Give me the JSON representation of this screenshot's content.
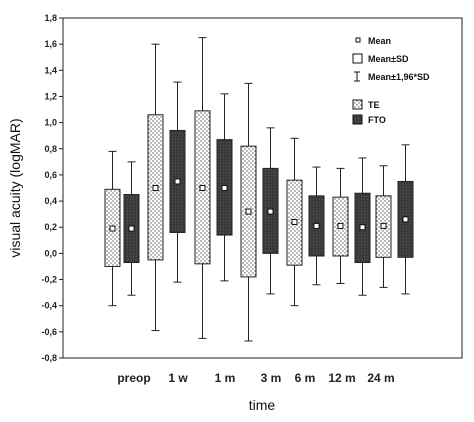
{
  "chart_data": {
    "type": "box",
    "title": "",
    "xlabel": "time",
    "ylabel": "visual acuity (logMAR)",
    "ylim": [
      -0.8,
      1.8
    ],
    "yticks": [
      "-0,8",
      "-0,6",
      "-0,4",
      "-0,2",
      "0,0",
      "0,2",
      "0,4",
      "0,6",
      "0,8",
      "1,0",
      "1,2",
      "1,4",
      "1,6",
      "1,8"
    ],
    "grid": false,
    "legend_position": "top-right",
    "legend": {
      "stats": [
        "Mean",
        "Mean±SD",
        "Mean±1,96*SD"
      ],
      "series": [
        "TE",
        "FTO"
      ]
    },
    "categories": [
      "preop",
      "1 w",
      "1 m",
      "3 m",
      "6 m",
      "12 m",
      "24 m"
    ],
    "series": [
      {
        "name": "TE",
        "pattern": "dotted",
        "mean": [
          0.19,
          0.5,
          0.5,
          0.32,
          0.24,
          0.21,
          0.21
        ],
        "sd_low": [
          -0.1,
          -0.05,
          -0.08,
          -0.18,
          -0.09,
          -0.02,
          -0.03
        ],
        "sd_high": [
          0.49,
          1.06,
          1.09,
          0.82,
          0.56,
          0.43,
          0.44
        ],
        "ci_low": [
          -0.4,
          -0.59,
          -0.65,
          -0.67,
          -0.4,
          -0.23,
          -0.26
        ],
        "ci_high": [
          0.78,
          1.6,
          1.65,
          1.3,
          0.88,
          0.65,
          0.67
        ]
      },
      {
        "name": "FTO",
        "pattern": "dark",
        "mean": [
          0.19,
          0.55,
          0.5,
          0.32,
          0.21,
          0.2,
          0.26
        ],
        "sd_low": [
          -0.07,
          0.16,
          0.14,
          0.0,
          -0.02,
          -0.07,
          -0.03
        ],
        "sd_high": [
          0.45,
          0.94,
          0.87,
          0.65,
          0.44,
          0.46,
          0.55
        ],
        "ci_low": [
          -0.32,
          -0.22,
          -0.21,
          -0.31,
          -0.24,
          -0.32,
          -0.31
        ],
        "ci_high": [
          0.7,
          1.31,
          1.22,
          0.96,
          0.66,
          0.73,
          0.83
        ]
      }
    ]
  }
}
